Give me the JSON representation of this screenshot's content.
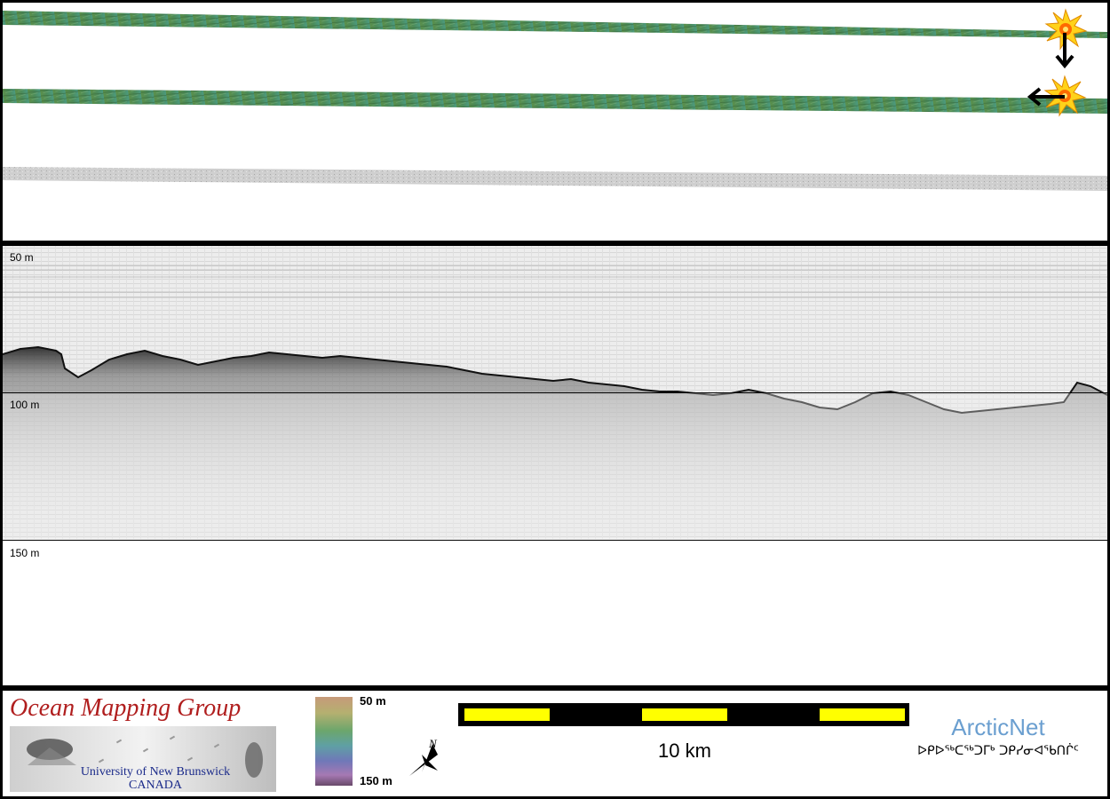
{
  "profile": {
    "depth_labels": [
      "50 m",
      "100 m",
      "150 m"
    ]
  },
  "footer": {
    "omg_title": "Ocean Mapping Group",
    "omg_university": "University of New Brunswick",
    "omg_country": "CANADA",
    "colorbar_top": "50 m",
    "colorbar_bottom": "150 m",
    "north_label": "N",
    "scale_label": "10 km",
    "arcticnet_name": "ArcticNet",
    "arcticnet_syllabics": "ᐅᑭᐅᖅᑕᖅᑐᒥᒃ ᑐᑭᓯᓂᐊᖃᑎᒌᑦ"
  },
  "colors": {
    "swath_green": "#4f9a6a",
    "backscatter_gray": "#c8c8c8",
    "scale_yellow": "#ffff00",
    "logo_red": "#b01e1e",
    "arcticnet_blue": "#6b9fd0"
  },
  "icons": [
    "explosion-icon",
    "arrow-down-icon",
    "arrow-left-icon",
    "north-arrow-icon"
  ]
}
